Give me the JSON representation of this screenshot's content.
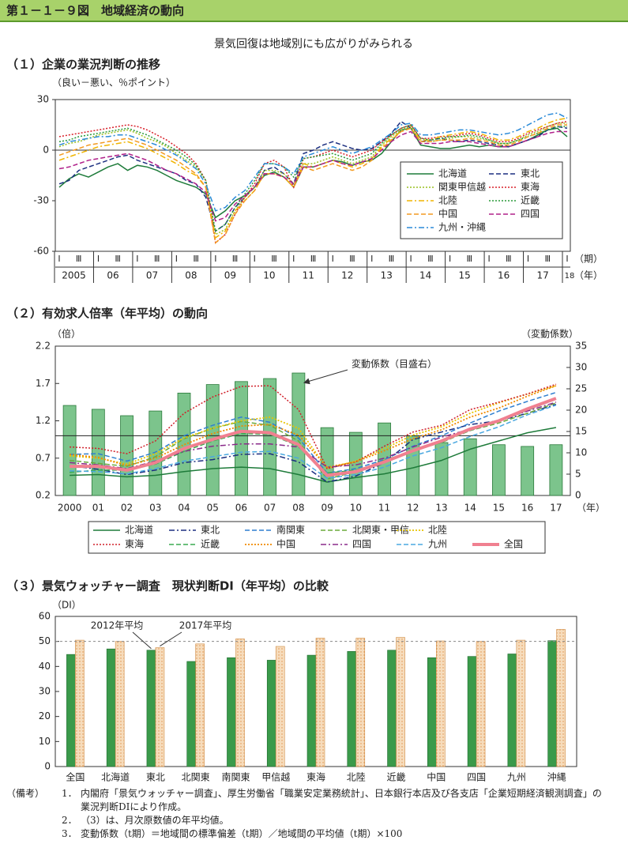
{
  "header": {
    "title": "第１－１－９図　地域経済の動向",
    "subtitle": "景気回復は地域別にも広がりがみられる"
  },
  "chart_data": [
    {
      "type": "line",
      "title": "（１）企業の業況判断の推移",
      "y_label": "（良い－悪い、％ポイント）",
      "categories": [
        "Ⅰ",
        null,
        "Ⅲ",
        null,
        "Ⅰ",
        null,
        "Ⅲ",
        null,
        "Ⅰ",
        null,
        "Ⅲ",
        null,
        "Ⅰ",
        null,
        "Ⅲ",
        null,
        "Ⅰ",
        null,
        "Ⅲ",
        null,
        "Ⅰ",
        null,
        "Ⅲ",
        null,
        "Ⅰ",
        null,
        "Ⅲ",
        null,
        "Ⅰ",
        null,
        "Ⅲ",
        null,
        "Ⅰ",
        null,
        "Ⅲ",
        null,
        "Ⅰ",
        null,
        "Ⅲ",
        null,
        "Ⅰ",
        null,
        "Ⅲ",
        null,
        "Ⅰ",
        null,
        "Ⅲ",
        null,
        "Ⅰ",
        null,
        "Ⅲ",
        null,
        "Ⅰ"
      ],
      "year_labels": [
        "2005",
        "06",
        "07",
        "08",
        "09",
        "10",
        "11",
        "12",
        "13",
        "14",
        "15",
        "16",
        "17",
        "18"
      ],
      "x_units": [
        "（期）",
        "（年）"
      ],
      "ylim": [
        -60,
        30
      ],
      "yticks": [
        -60,
        -30,
        0,
        30
      ],
      "hline": 0,
      "legend": "lower right",
      "series": [
        {
          "name": "北海道",
          "color": "#1e7b3a",
          "dash": "solid",
          "values": [
            -22,
            -17,
            -14,
            -16,
            -13,
            -10,
            -8,
            -12,
            -9,
            -10,
            -12,
            -15,
            -18,
            -20,
            -22,
            -26,
            -40,
            -36,
            -30,
            -27,
            -22,
            -15,
            -13,
            -16,
            -22,
            -10,
            -10,
            -8,
            -6,
            -7,
            -9,
            -7,
            -6,
            -2,
            5,
            12,
            13,
            3,
            2,
            1,
            1,
            2,
            3,
            2,
            3,
            2,
            2,
            4,
            6,
            9,
            12,
            13,
            8
          ]
        },
        {
          "name": "東北",
          "color": "#1c2f80",
          "dash": "dashed",
          "values": [
            -20,
            -18,
            -12,
            -10,
            -8,
            -6,
            -4,
            -3,
            -6,
            -8,
            -10,
            -12,
            -14,
            -18,
            -20,
            -28,
            -48,
            -44,
            -34,
            -28,
            -22,
            -12,
            -10,
            -14,
            -20,
            -2,
            0,
            3,
            5,
            3,
            1,
            0,
            1,
            5,
            10,
            17,
            13,
            5,
            6,
            7,
            6,
            5,
            6,
            5,
            4,
            3,
            2,
            4,
            6,
            8,
            12,
            14,
            13
          ]
        },
        {
          "name": "関東甲信越",
          "color": "#9ac020",
          "dash": "dotted",
          "values": [
            2,
            4,
            5,
            7,
            9,
            10,
            11,
            12,
            10,
            7,
            5,
            2,
            -2,
            -6,
            -10,
            -18,
            -50,
            -47,
            -36,
            -28,
            -22,
            -12,
            -12,
            -14,
            -20,
            -8,
            -8,
            -6,
            -4,
            -6,
            -8,
            -6,
            -4,
            3,
            8,
            12,
            14,
            5,
            5,
            6,
            7,
            8,
            8,
            7,
            6,
            4,
            4,
            6,
            9,
            11,
            14,
            16,
            16
          ]
        },
        {
          "name": "東海",
          "color": "#d8202a",
          "dash": "dotted",
          "values": [
            8,
            9,
            10,
            11,
            12,
            13,
            14,
            15,
            14,
            12,
            9,
            6,
            2,
            -2,
            -8,
            -18,
            -55,
            -50,
            -38,
            -28,
            -20,
            -8,
            -6,
            -10,
            -22,
            -5,
            -4,
            -2,
            0,
            -2,
            -4,
            -2,
            0,
            5,
            9,
            13,
            15,
            7,
            7,
            8,
            8,
            9,
            10,
            9,
            7,
            5,
            5,
            7,
            10,
            12,
            14,
            16,
            17
          ]
        },
        {
          "name": "北陸",
          "color": "#f0b400",
          "dash": "dashdot",
          "values": [
            -6,
            -4,
            -2,
            0,
            2,
            3,
            4,
            5,
            3,
            1,
            -2,
            -5,
            -8,
            -12,
            -15,
            -22,
            -52,
            -48,
            -36,
            -30,
            -24,
            -14,
            -14,
            -16,
            -22,
            -8,
            -10,
            -8,
            -6,
            -8,
            -10,
            -8,
            -5,
            2,
            7,
            11,
            13,
            6,
            6,
            8,
            9,
            10,
            11,
            10,
            8,
            6,
            6,
            8,
            11,
            13,
            16,
            18,
            19
          ]
        },
        {
          "name": "近畿",
          "color": "#2a9a3a",
          "dash": "dotted",
          "values": [
            5,
            6,
            8,
            9,
            10,
            11,
            12,
            13,
            11,
            9,
            6,
            3,
            0,
            -4,
            -9,
            -18,
            -48,
            -44,
            -34,
            -26,
            -18,
            -8,
            -8,
            -10,
            -16,
            -5,
            -4,
            -3,
            -2,
            -4,
            -6,
            -4,
            -2,
            4,
            9,
            13,
            15,
            7,
            6,
            7,
            8,
            8,
            9,
            8,
            6,
            4,
            4,
            6,
            8,
            10,
            12,
            14,
            14
          ]
        },
        {
          "name": "中国",
          "color": "#f39a20",
          "dash": "dashed",
          "values": [
            -3,
            -1,
            1,
            3,
            4,
            5,
            6,
            7,
            5,
            3,
            0,
            -3,
            -6,
            -10,
            -14,
            -22,
            -55,
            -50,
            -38,
            -30,
            -24,
            -14,
            -14,
            -16,
            -22,
            -10,
            -12,
            -10,
            -8,
            -10,
            -12,
            -10,
            -6,
            1,
            6,
            11,
            13,
            5,
            5,
            6,
            6,
            6,
            7,
            6,
            5,
            3,
            3,
            5,
            8,
            10,
            13,
            15,
            15
          ]
        },
        {
          "name": "四国",
          "color": "#b0208a",
          "dash": "dashed",
          "values": [
            -11,
            -10,
            -8,
            -6,
            -5,
            -4,
            -3,
            -2,
            -4,
            -6,
            -9,
            -12,
            -14,
            -17,
            -20,
            -25,
            -42,
            -40,
            -32,
            -27,
            -22,
            -14,
            -14,
            -16,
            -20,
            -10,
            -10,
            -8,
            -6,
            -8,
            -9,
            -7,
            -5,
            0,
            5,
            9,
            11,
            4,
            4,
            4,
            5,
            5,
            5,
            4,
            3,
            2,
            2,
            4,
            6,
            8,
            10,
            11,
            11
          ]
        },
        {
          "name": "九州・沖縄",
          "color": "#2a8ad8",
          "dash": "dashdot",
          "values": [
            3,
            5,
            6,
            7,
            8,
            8,
            9,
            9,
            7,
            5,
            3,
            0,
            -3,
            -7,
            -11,
            -20,
            -36,
            -34,
            -28,
            -24,
            -16,
            -8,
            -8,
            -10,
            -14,
            -4,
            -2,
            0,
            2,
            0,
            -2,
            0,
            2,
            6,
            10,
            15,
            16,
            9,
            9,
            10,
            11,
            12,
            12,
            11,
            10,
            9,
            10,
            12,
            15,
            18,
            21,
            22,
            19
          ]
        }
      ]
    },
    {
      "type": "bar_line",
      "title": "（２）有効求人倍率（年平均）の動向",
      "y_label": "（倍）",
      "y2_label": "（変動係数）",
      "x_unit": "（年）",
      "annotation": "変動係数（目盛右）",
      "categories": [
        "2000",
        "01",
        "02",
        "03",
        "04",
        "05",
        "06",
        "07",
        "08",
        "09",
        "10",
        "11",
        "12",
        "13",
        "14",
        "15",
        "16",
        "17"
      ],
      "ylim": [
        0.2,
        2.2
      ],
      "yticks": [
        0.2,
        0.7,
        1.2,
        1.7,
        2.2
      ],
      "y2lim": [
        0,
        35
      ],
      "y2ticks": [
        0,
        5,
        10,
        15,
        20,
        25,
        30,
        35
      ],
      "hline": 1,
      "bars": {
        "color": "#7cc48c",
        "axis": "y2",
        "values": [
          21.1,
          20.2,
          18.7,
          19.8,
          24,
          26,
          26.7,
          27.4,
          28.7,
          15.9,
          14.8,
          17,
          14,
          12.4,
          13.3,
          11.9,
          11.5,
          11.9
        ]
      },
      "series": [
        {
          "name": "北海道",
          "color": "#1e7b3a",
          "dash": "solid",
          "width": 1.5,
          "values": [
            0.47,
            0.48,
            0.45,
            0.47,
            0.52,
            0.56,
            0.58,
            0.56,
            0.48,
            0.38,
            0.44,
            0.49,
            0.57,
            0.67,
            0.82,
            0.93,
            1.04,
            1.11
          ]
        },
        {
          "name": "東北",
          "color": "#1c2f80",
          "dash": "dashdot",
          "width": 1.5,
          "values": [
            0.6,
            0.55,
            0.48,
            0.54,
            0.64,
            0.68,
            0.75,
            0.76,
            0.65,
            0.38,
            0.46,
            0.64,
            0.95,
            1.05,
            1.15,
            1.2,
            1.3,
            1.42
          ]
        },
        {
          "name": "南関東",
          "color": "#2f7fd0",
          "dash": "dashed",
          "width": 1.5,
          "values": [
            0.75,
            0.76,
            0.66,
            0.78,
            1,
            1.14,
            1.25,
            1.18,
            0.97,
            0.5,
            0.56,
            0.68,
            0.86,
            1,
            1.17,
            1.33,
            1.46,
            1.58
          ]
        },
        {
          "name": "北関東・甲信",
          "color": "#6aaa3a",
          "dash": "dashed",
          "width": 1.5,
          "values": [
            0.67,
            0.63,
            0.59,
            0.72,
            0.96,
            1.1,
            1.19,
            1.14,
            0.93,
            0.42,
            0.52,
            0.67,
            0.8,
            0.91,
            1.07,
            1.17,
            1.3,
            1.44
          ]
        },
        {
          "name": "北陸",
          "color": "#e8c400",
          "dash": "dotted",
          "width": 1.8,
          "values": [
            0.73,
            0.7,
            0.62,
            0.76,
            0.97,
            1.1,
            1.2,
            1.25,
            1.1,
            0.56,
            0.66,
            0.83,
            1.01,
            1.12,
            1.3,
            1.44,
            1.56,
            1.67
          ]
        },
        {
          "name": "東海",
          "color": "#d0202a",
          "dash": "dotted",
          "width": 1.5,
          "values": [
            0.85,
            0.83,
            0.76,
            0.93,
            1.3,
            1.52,
            1.66,
            1.67,
            1.35,
            0.56,
            0.65,
            0.86,
            1.05,
            1.14,
            1.35,
            1.45,
            1.56,
            1.69
          ]
        },
        {
          "name": "近畿",
          "color": "#3aaa50",
          "dash": "dashed",
          "width": 1.5,
          "values": [
            0.51,
            0.54,
            0.54,
            0.62,
            0.79,
            0.93,
            1.03,
            1.02,
            0.86,
            0.5,
            0.54,
            0.65,
            0.81,
            0.93,
            1.07,
            1.19,
            1.34,
            1.49
          ]
        },
        {
          "name": "中国",
          "color": "#f08a00",
          "dash": "dotted",
          "width": 1.8,
          "values": [
            0.75,
            0.71,
            0.6,
            0.7,
            0.88,
            1.03,
            1.13,
            1.15,
            1.01,
            0.58,
            0.65,
            0.8,
            0.96,
            1.08,
            1.25,
            1.37,
            1.53,
            1.67
          ]
        },
        {
          "name": "四国",
          "color": "#8a2a8a",
          "dash": "dashdot",
          "width": 1.5,
          "values": [
            0.64,
            0.61,
            0.56,
            0.66,
            0.79,
            0.86,
            0.89,
            0.89,
            0.85,
            0.58,
            0.61,
            0.7,
            0.85,
            0.98,
            1.09,
            1.21,
            1.33,
            1.45
          ]
        },
        {
          "name": "九州",
          "color": "#4aa8e0",
          "dash": "dashed",
          "width": 1.5,
          "values": [
            0.53,
            0.52,
            0.49,
            0.56,
            0.66,
            0.72,
            0.78,
            0.79,
            0.7,
            0.43,
            0.48,
            0.58,
            0.73,
            0.84,
            0.99,
            1.12,
            1.28,
            1.41
          ]
        },
        {
          "name": "全国",
          "color": "#f08090",
          "dash": "solid",
          "width": 4,
          "values": [
            0.59,
            0.59,
            0.54,
            0.64,
            0.83,
            0.95,
            1.06,
            1.04,
            0.88,
            0.47,
            0.52,
            0.65,
            0.8,
            0.93,
            1.09,
            1.2,
            1.36,
            1.5
          ]
        }
      ]
    },
    {
      "type": "bar",
      "title": "（３）景気ウォッチャー調査　現状判断DI（年平均）の比較",
      "y_label": "（DI）",
      "categories": [
        "全国",
        "北海道",
        "東北",
        "北関東",
        "南関東",
        "甲信越",
        "東海",
        "北陸",
        "近畿",
        "中国",
        "四国",
        "九州",
        "沖縄"
      ],
      "ylim": [
        0,
        60
      ],
      "yticks": [
        0,
        10,
        20,
        30,
        40,
        50,
        60
      ],
      "hline": 50,
      "series": [
        {
          "name": "2012年平均",
          "color": "#3a9a4a",
          "values": [
            44.8,
            47,
            46.5,
            42,
            43.5,
            42.5,
            44.5,
            46,
            46.5,
            43.5,
            44,
            45,
            50.3
          ]
        },
        {
          "name": "2017年平均",
          "color": "#f6dcbc",
          "values": [
            50.5,
            50,
            47.5,
            49,
            51,
            48,
            51.3,
            51.3,
            51.6,
            50.2,
            50,
            50.5,
            54.8
          ]
        }
      ]
    }
  ],
  "notes": {
    "label": "（備考）",
    "items": [
      {
        "num": "1．",
        "text": "内閣府「景気ウォッチャー調査」、厚生労働省「職業安定業務統計」、日本銀行本店及び各支店「企業短期経済観測調査」の業況判断DIにより作成。"
      },
      {
        "num": "2．",
        "text": "（3）は、月次原数値の年平均値。"
      },
      {
        "num": "3．",
        "text": "変動係数（t期）＝地域間の標準偏差（t期）／地域間の平均値（t期）×100"
      }
    ]
  }
}
